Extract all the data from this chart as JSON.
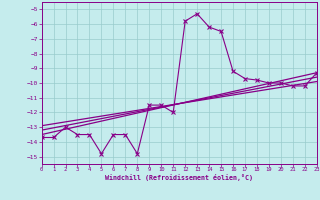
{
  "xlabel": "Windchill (Refroidissement éolien,°C)",
  "background_color": "#c5eced",
  "grid_color": "#99cccc",
  "line_color": "#880088",
  "xlim": [
    0,
    23
  ],
  "ylim": [
    -15.5,
    -4.5
  ],
  "xticks": [
    0,
    1,
    2,
    3,
    4,
    5,
    6,
    7,
    8,
    9,
    10,
    11,
    12,
    13,
    14,
    15,
    16,
    17,
    18,
    19,
    20,
    21,
    22,
    23
  ],
  "yticks": [
    -5,
    -6,
    -7,
    -8,
    -9,
    -10,
    -11,
    -12,
    -13,
    -14,
    -15
  ],
  "curve1_x": [
    0,
    1,
    2,
    3,
    4,
    5,
    6,
    7,
    8,
    9,
    10,
    11,
    12,
    13,
    14,
    15,
    16,
    17,
    18,
    19,
    20,
    21,
    22,
    23
  ],
  "curve1_y": [
    -13.7,
    -13.7,
    -13.0,
    -13.5,
    -13.5,
    -14.8,
    -13.5,
    -13.5,
    -14.8,
    -11.5,
    -11.5,
    -12.0,
    -5.8,
    -5.3,
    -6.2,
    -6.5,
    -9.2,
    -9.7,
    -9.8,
    -10.0,
    -10.0,
    -10.2,
    -10.2,
    -9.3
  ],
  "curve2_x": [
    0,
    23
  ],
  "curve2_y": [
    -13.5,
    -9.3
  ],
  "curve3_x": [
    0,
    23
  ],
  "curve3_y": [
    -13.2,
    -9.6
  ],
  "curve4_x": [
    0,
    23
  ],
  "curve4_y": [
    -12.9,
    -9.9
  ]
}
